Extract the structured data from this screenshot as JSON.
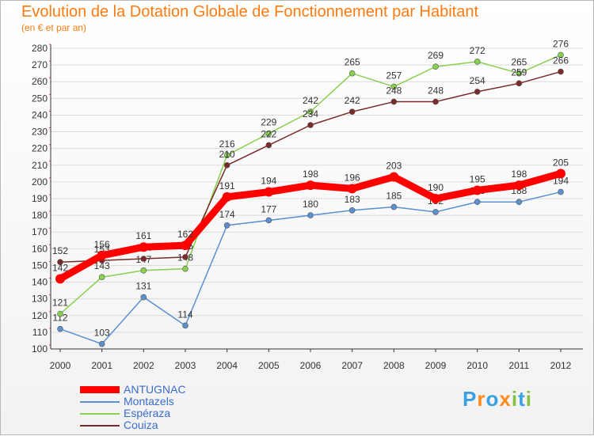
{
  "chart_data": {
    "type": "line",
    "title": "Evolution de la Dotation Globale de Fonctionnement par Habitant",
    "subtitle": "(en € et par an)",
    "xlabel": "",
    "ylabel": "",
    "ylim": [
      100,
      280
    ],
    "y_tick_step": 10,
    "grid": "horizontal",
    "legend_position": "bottom-left",
    "x": [
      "2000",
      "2001",
      "2002",
      "2003",
      "2004",
      "2005",
      "2006",
      "2007",
      "2008",
      "2009",
      "2010",
      "2011",
      "2012"
    ],
    "series": [
      {
        "name": "ANTUGNAC",
        "color": "#ff0000",
        "emphasis": true,
        "values": [
          142,
          156,
          161,
          162,
          191,
          194,
          198,
          196,
          203,
          190,
          195,
          198,
          205
        ]
      },
      {
        "name": "Montazels",
        "color": "#5b8fd0",
        "emphasis": false,
        "values": [
          112,
          103,
          131,
          114,
          174,
          177,
          180,
          183,
          185,
          182,
          188,
          188,
          194
        ]
      },
      {
        "name": "Espéraza",
        "color": "#88d050",
        "emphasis": false,
        "values": [
          121,
          143,
          147,
          148,
          216,
          229,
          242,
          265,
          257,
          269,
          272,
          265,
          276
        ]
      },
      {
        "name": "Couiza",
        "color": "#7a2a2a",
        "emphasis": false,
        "values": [
          152,
          153,
          154,
          155,
          210,
          222,
          234,
          242,
          248,
          248,
          254,
          259,
          266
        ]
      }
    ]
  },
  "brand": {
    "letters": [
      "P",
      "r",
      "o",
      "x",
      "i",
      "t",
      "i"
    ],
    "colors": [
      "#3aa0e0",
      "#ff8c1a",
      "#3aa0e0",
      "#ff8c1a",
      "#88c040",
      "#3aa0e0",
      "#88c040"
    ]
  }
}
